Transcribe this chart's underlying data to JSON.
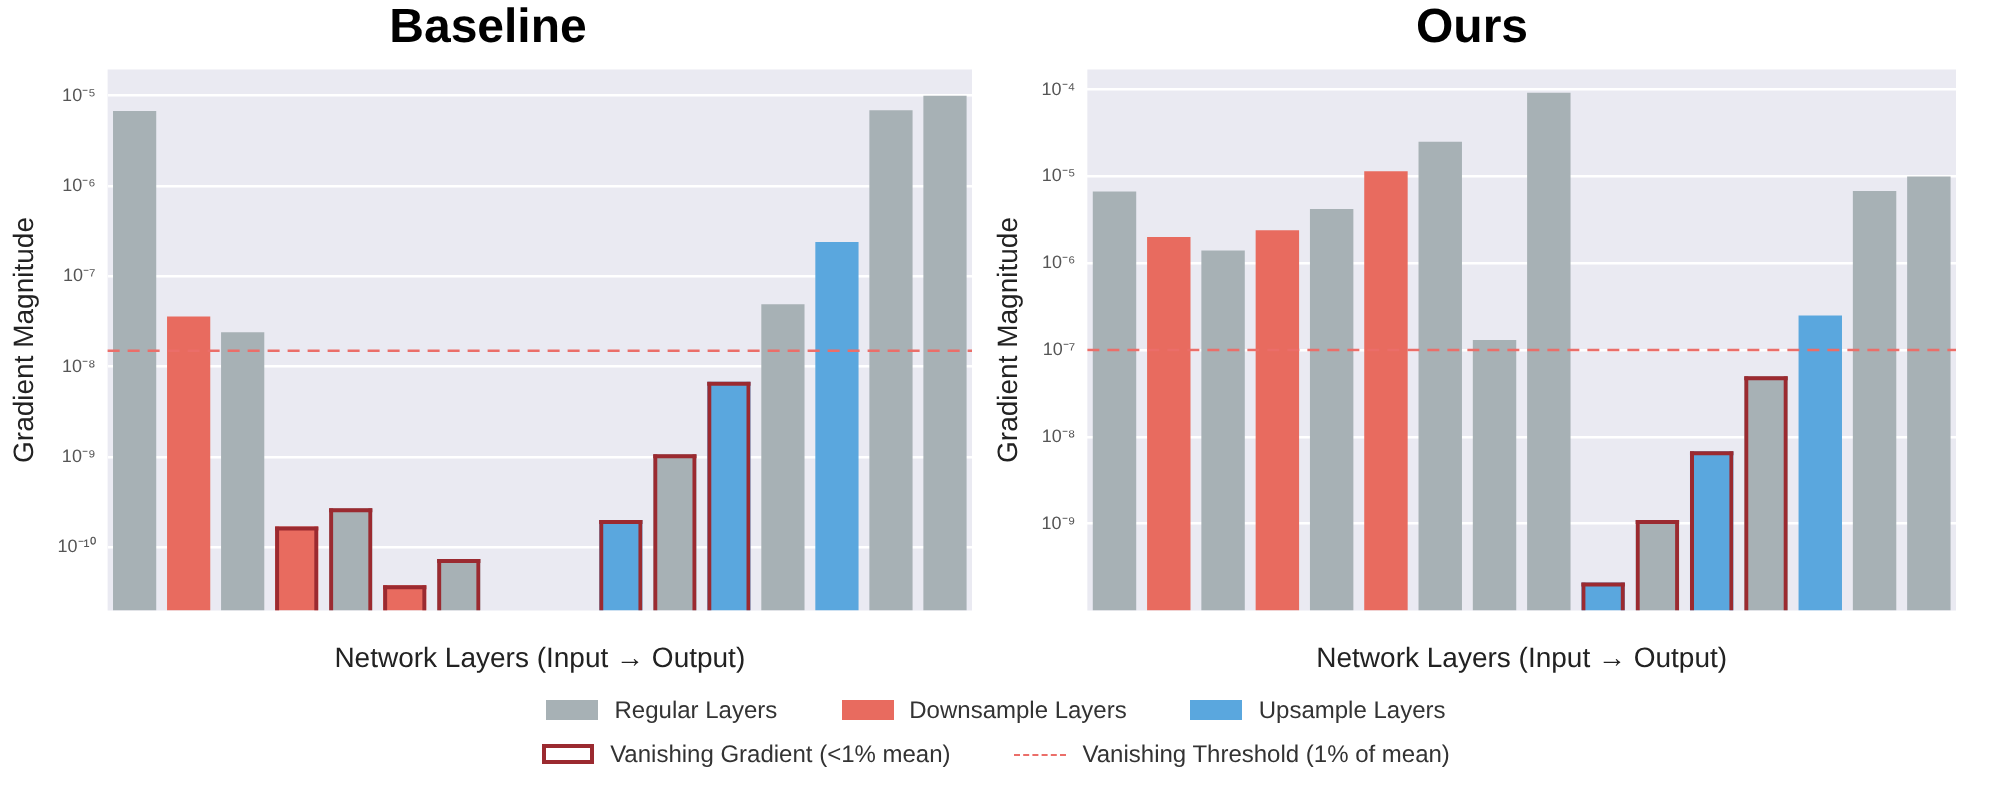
{
  "chart_data": [
    {
      "type": "bar",
      "title": "Baseline",
      "xlabel": "Network Layers (Input → Output)",
      "ylabel": "Gradient Magnitude",
      "categories": [
        null,
        null,
        null,
        null,
        null,
        null,
        null,
        null,
        null,
        null,
        null,
        null,
        null,
        null,
        null,
        null
      ],
      "series": [
        {
          "name": "Regular Layers",
          "color": "#a7b1b5",
          "values": [
            6.8e-06,
            null,
            2.4e-08,
            null,
            2.7e-10,
            null,
            7.4e-11,
            null,
            null,
            null,
            1.07e-09,
            null,
            4.9e-08,
            null,
            6.9e-06,
            1e-05
          ]
        },
        {
          "name": "Downsample Layers",
          "color": "#e86b5f",
          "values": [
            null,
            3.6e-08,
            null,
            1.7e-10,
            null,
            3.8e-11,
            null,
            null,
            null,
            null,
            null,
            null,
            null,
            null,
            null,
            null
          ]
        },
        {
          "name": "Upsample Layers",
          "color": "#5aa7de",
          "values": [
            null,
            null,
            null,
            null,
            null,
            null,
            null,
            null,
            null,
            2e-10,
            null,
            6.8e-09,
            null,
            2.4e-07,
            null,
            null
          ]
        },
        {
          "name": "Vanishing Gradient (<1% mean)",
          "color": "#9b2a30",
          "line_style": "solid",
          "values": [
            null,
            null,
            null,
            1.7e-10,
            2.7e-10,
            3.8e-11,
            7.4e-11,
            null,
            null,
            2e-10,
            1.07e-09,
            6.8e-09,
            null,
            null,
            null,
            null
          ]
        }
      ],
      "log": true,
      "ylim": [
        2e-11,
        1.95e-05
      ],
      "yticks": [
        {
          "value": 1e-05,
          "label": "10⁻⁵"
        },
        {
          "value": 1e-06,
          "label": "10⁻⁶"
        },
        {
          "value": 1e-07,
          "label": "10⁻⁷"
        },
        {
          "value": 1e-08,
          "label": "10⁻⁸"
        },
        {
          "value": 1e-09,
          "label": "10⁻⁹"
        },
        {
          "value": 1e-10,
          "label": "10⁻¹⁰"
        }
      ],
      "ref_lines": [
        {
          "axis": "y",
          "value": 1.5e-08,
          "label": "Vanishing Threshold (1% of mean)",
          "color": "#eb6e69",
          "line_style": "dashed"
        }
      ],
      "grid": "y",
      "tick_labels": "y",
      "legend": "bottom"
    },
    {
      "type": "bar",
      "title": "Ours",
      "xlabel": "Network Layers (Input → Output)",
      "ylabel": "Gradient Magnitude",
      "categories": [
        null,
        null,
        null,
        null,
        null,
        null,
        null,
        null,
        null,
        null,
        null,
        null,
        null,
        null,
        null,
        null
      ],
      "series": [
        {
          "color": "#a7b1b5",
          "values": [
            6.7e-06,
            null,
            1.4e-06,
            null,
            4.2e-06,
            null,
            2.5e-05,
            1.3e-07,
            9.2e-05,
            null,
            1.1e-09,
            null,
            5e-08,
            null,
            6.8e-06,
            1e-05
          ]
        },
        {
          "color": "#e86b5f",
          "values": [
            null,
            2e-06,
            null,
            2.4e-06,
            null,
            1.15e-05,
            null,
            null,
            null,
            null,
            null,
            null,
            null,
            null,
            null,
            null
          ]
        },
        {
          "color": "#5aa7de",
          "values": [
            null,
            null,
            null,
            null,
            null,
            null,
            null,
            null,
            null,
            2.1e-10,
            null,
            6.8e-09,
            null,
            2.5e-07,
            null,
            null
          ]
        },
        {
          "color": "#9b2a30",
          "line_style": "solid",
          "values": [
            null,
            null,
            null,
            null,
            null,
            null,
            null,
            null,
            null,
            2.1e-10,
            1.1e-09,
            6.8e-09,
            5e-08,
            null,
            null,
            null
          ]
        }
      ],
      "log": true,
      "ylim": [
        1e-10,
        0.00017
      ],
      "yticks": [
        {
          "value": 0.0001,
          "label": "10⁻⁴"
        },
        {
          "value": 1e-05,
          "label": "10⁻⁵"
        },
        {
          "value": 1e-06,
          "label": "10⁻⁶"
        },
        {
          "value": 1e-07,
          "label": "10⁻⁷"
        },
        {
          "value": 1e-08,
          "label": "10⁻⁸"
        },
        {
          "value": 1e-09,
          "label": "10⁻⁹"
        }
      ],
      "ref_lines": [
        {
          "axis": "y",
          "value": 1e-07,
          "color": "#eb6e69",
          "line_style": "dashed"
        }
      ],
      "grid": "y",
      "tick_labels": "y"
    }
  ]
}
